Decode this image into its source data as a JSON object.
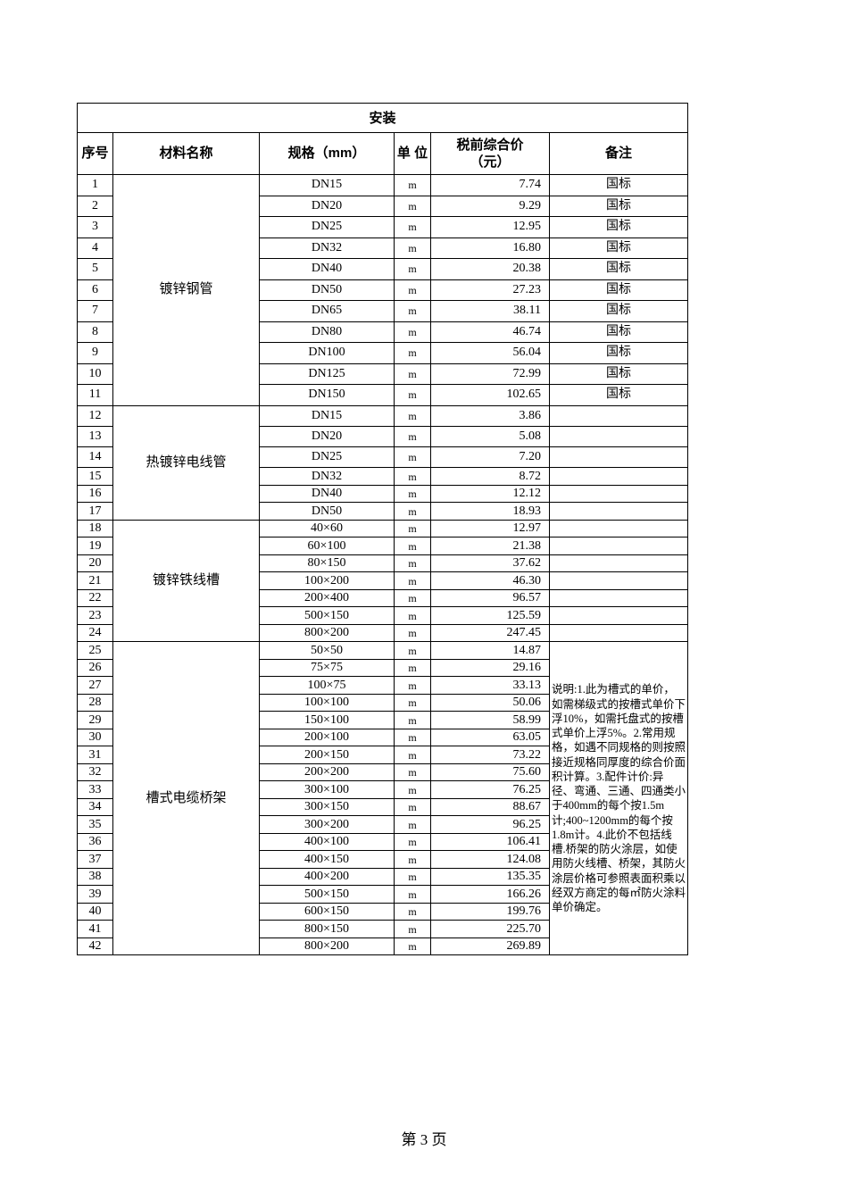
{
  "table": {
    "title": "安装",
    "headers": [
      "序号",
      "材料名称",
      "规格（mm）",
      "单 位",
      "税前综合价\n（元）",
      "备注"
    ],
    "groups": [
      {
        "name": "镀锌钢管",
        "rows": [
          {
            "no": "1",
            "spec": "DN15",
            "unit": "m",
            "price": "7.74",
            "remark": "国标"
          },
          {
            "no": "2",
            "spec": "DN20",
            "unit": "m",
            "price": "9.29",
            "remark": "国标"
          },
          {
            "no": "3",
            "spec": "DN25",
            "unit": "m",
            "price": "12.95",
            "remark": "国标"
          },
          {
            "no": "4",
            "spec": "DN32",
            "unit": "m",
            "price": "16.80",
            "remark": "国标"
          },
          {
            "no": "5",
            "spec": "DN40",
            "unit": "m",
            "price": "20.38",
            "remark": "国标"
          },
          {
            "no": "6",
            "spec": "DN50",
            "unit": "m",
            "price": "27.23",
            "remark": "国标"
          },
          {
            "no": "7",
            "spec": "DN65",
            "unit": "m",
            "price": "38.11",
            "remark": "国标"
          },
          {
            "no": "8",
            "spec": "DN80",
            "unit": "m",
            "price": "46.74",
            "remark": "国标"
          },
          {
            "no": "9",
            "spec": "DN100",
            "unit": "m",
            "price": "56.04",
            "remark": "国标"
          },
          {
            "no": "10",
            "spec": "DN125",
            "unit": "m",
            "price": "72.99",
            "remark": "国标"
          },
          {
            "no": "11",
            "spec": "DN150",
            "unit": "m",
            "price": "102.65",
            "remark": "国标"
          }
        ]
      },
      {
        "name": "热镀锌电线管",
        "rows": [
          {
            "no": "12",
            "spec": "DN15",
            "unit": "m",
            "price": "3.86",
            "remark": ""
          },
          {
            "no": "13",
            "spec": "DN20",
            "unit": "m",
            "price": "5.08",
            "remark": ""
          },
          {
            "no": "14",
            "spec": "DN25",
            "unit": "m",
            "price": "7.20",
            "remark": ""
          },
          {
            "no": "15",
            "spec": "DN32",
            "unit": "m",
            "price": "8.72",
            "remark": ""
          },
          {
            "no": "16",
            "spec": "DN40",
            "unit": "m",
            "price": "12.12",
            "remark": ""
          },
          {
            "no": "17",
            "spec": "DN50",
            "unit": "m",
            "price": "18.93",
            "remark": ""
          }
        ]
      },
      {
        "name": "镀锌铁线槽",
        "rows": [
          {
            "no": "18",
            "spec": "40×60",
            "unit": "m",
            "price": "12.97",
            "remark": ""
          },
          {
            "no": "19",
            "spec": "60×100",
            "unit": "m",
            "price": "21.38",
            "remark": ""
          },
          {
            "no": "20",
            "spec": "80×150",
            "unit": "m",
            "price": "37.62",
            "remark": ""
          },
          {
            "no": "21",
            "spec": "100×200",
            "unit": "m",
            "price": "46.30",
            "remark": ""
          },
          {
            "no": "22",
            "spec": "200×400",
            "unit": "m",
            "price": "96.57",
            "remark": ""
          },
          {
            "no": "23",
            "spec": "500×150",
            "unit": "m",
            "price": "125.59",
            "remark": ""
          },
          {
            "no": "24",
            "spec": "800×200",
            "unit": "m",
            "price": "247.45",
            "remark": ""
          }
        ]
      },
      {
        "name": "槽式电缆桥架",
        "note": "说明:1.此为槽式的单价，如需梯级式的按槽式单价下浮10%，如需托盘式的按槽式单价上浮5%。2.常用规格，如遇不同规格的则按照接近规格同厚度的综合价面积计算。3.配件计价:异径、弯通、三通、四通类小于400mm的每个按1.5m计;400~1200mm的每个按1.8m计。4.此价不包括线槽.桥架的防火涂层，如使用防火线槽、桥架，其防火涂层价格可参照表面积乘以经双方商定的每㎡防火涂料单价确定。",
        "rows": [
          {
            "no": "25",
            "spec": "50×50",
            "unit": "m",
            "price": "14.87"
          },
          {
            "no": "26",
            "spec": "75×75",
            "unit": "m",
            "price": "29.16"
          },
          {
            "no": "27",
            "spec": "100×75",
            "unit": "m",
            "price": "33.13"
          },
          {
            "no": "28",
            "spec": "100×100",
            "unit": "m",
            "price": "50.06"
          },
          {
            "no": "29",
            "spec": "150×100",
            "unit": "m",
            "price": "58.99"
          },
          {
            "no": "30",
            "spec": "200×100",
            "unit": "m",
            "price": "63.05"
          },
          {
            "no": "31",
            "spec": "200×150",
            "unit": "m",
            "price": "73.22"
          },
          {
            "no": "32",
            "spec": "200×200",
            "unit": "m",
            "price": "75.60"
          },
          {
            "no": "33",
            "spec": "300×100",
            "unit": "m",
            "price": "76.25"
          },
          {
            "no": "34",
            "spec": "300×150",
            "unit": "m",
            "price": "88.67"
          },
          {
            "no": "35",
            "spec": "300×200",
            "unit": "m",
            "price": "96.25"
          },
          {
            "no": "36",
            "spec": "400×100",
            "unit": "m",
            "price": "106.41"
          },
          {
            "no": "37",
            "spec": "400×150",
            "unit": "m",
            "price": "124.08"
          },
          {
            "no": "38",
            "spec": "400×200",
            "unit": "m",
            "price": "135.35"
          },
          {
            "no": "39",
            "spec": "500×150",
            "unit": "m",
            "price": "166.26"
          },
          {
            "no": "40",
            "spec": "600×150",
            "unit": "m",
            "price": "199.76"
          },
          {
            "no": "41",
            "spec": "800×150",
            "unit": "m",
            "price": "225.70"
          },
          {
            "no": "42",
            "spec": "800×200",
            "unit": "m",
            "price": "269.89"
          }
        ]
      }
    ]
  },
  "footer": {
    "page_label": "第 3 页"
  }
}
